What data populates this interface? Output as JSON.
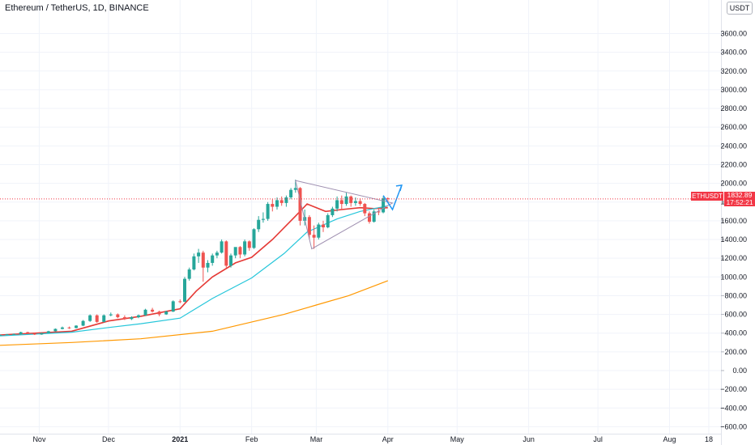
{
  "header": {
    "title": "Ethereum / TetherUS, 1D, BINANCE",
    "currency": "USDT"
  },
  "price_marker": {
    "symbol": "ETHUSDT",
    "price": "1832.89",
    "countdown": "17:52:21",
    "color": "#f23645"
  },
  "colors": {
    "up": "#26a69a",
    "down": "#ef5350",
    "ema_fast": "#e53935",
    "ema_mid": "#26c6da",
    "ema_slow": "#ff9800",
    "triangle": "#9e8fb0",
    "arrow": "#2196f3",
    "grid": "#f0f3fa"
  },
  "chart_data": {
    "type": "candlestick",
    "title": "Ethereum / TetherUS, 1D, BINANCE",
    "y_axis": {
      "ticks": [
        3600,
        3400,
        3200,
        3000,
        2800,
        2600,
        2400,
        2200,
        2000,
        1800,
        1600,
        1400,
        1200,
        1000,
        800,
        600,
        400,
        200,
        0,
        -200,
        -400,
        -600
      ],
      "tick_labels": [
        "3600.00",
        "3400.00",
        "3200.00",
        "3000.00",
        "2800.00",
        "2600.00",
        "2400.00",
        "2200.00",
        "2000.00",
        "1800.00",
        "1600.00",
        "1400.00",
        "1200.00",
        "1000.00",
        "800.00",
        "600.00",
        "400.00",
        "200.00",
        "0.00",
        "−200.00",
        "−400.00",
        "−600.00"
      ],
      "range": [
        -700,
        3800
      ]
    },
    "x_axis": {
      "labels": [
        "Nov",
        "Dec",
        "2021",
        "Feb",
        "Mar",
        "Apr",
        "May",
        "Jun",
        "Jul",
        "Aug",
        "18"
      ],
      "bold_labels": [
        "2021"
      ],
      "start": "2020-10-15",
      "end": "2021-08-18"
    },
    "candles_daily": [
      [
        "2020-10-15",
        380,
        385,
        375,
        382
      ],
      [
        "2020-10-18",
        382,
        390,
        378,
        388
      ],
      [
        "2020-10-21",
        388,
        395,
        380,
        390
      ],
      [
        "2020-10-24",
        390,
        415,
        385,
        410
      ],
      [
        "2020-10-27",
        410,
        415,
        390,
        395
      ],
      [
        "2020-10-30",
        395,
        400,
        380,
        385
      ],
      [
        "2020-11-02",
        385,
        405,
        382,
        400
      ],
      [
        "2020-11-05",
        400,
        425,
        398,
        420
      ],
      [
        "2020-11-08",
        420,
        450,
        415,
        445
      ],
      [
        "2020-11-11",
        445,
        470,
        440,
        460
      ],
      [
        "2020-11-14",
        460,
        470,
        445,
        455
      ],
      [
        "2020-11-17",
        455,
        485,
        450,
        480
      ],
      [
        "2020-11-20",
        480,
        540,
        475,
        530
      ],
      [
        "2020-11-23",
        530,
        600,
        520,
        590
      ],
      [
        "2020-11-26",
        590,
        600,
        510,
        520
      ],
      [
        "2020-11-29",
        520,
        600,
        515,
        590
      ],
      [
        "2020-12-02",
        590,
        620,
        580,
        600
      ],
      [
        "2020-12-05",
        600,
        610,
        560,
        570
      ],
      [
        "2020-12-08",
        570,
        590,
        540,
        550
      ],
      [
        "2020-12-11",
        550,
        580,
        540,
        570
      ],
      [
        "2020-12-14",
        570,
        600,
        560,
        590
      ],
      [
        "2020-12-17",
        590,
        660,
        585,
        650
      ],
      [
        "2020-12-20",
        650,
        670,
        620,
        630
      ],
      [
        "2020-12-23",
        630,
        640,
        580,
        600
      ],
      [
        "2020-12-26",
        600,
        640,
        595,
        630
      ],
      [
        "2020-12-29",
        630,
        750,
        625,
        740
      ],
      [
        "2021-01-01",
        740,
        760,
        720,
        735
      ],
      [
        "2021-01-03",
        735,
        1000,
        730,
        980
      ],
      [
        "2021-01-05",
        980,
        1100,
        960,
        1080
      ],
      [
        "2021-01-07",
        1080,
        1250,
        1070,
        1220
      ],
      [
        "2021-01-09",
        1220,
        1300,
        1150,
        1260
      ],
      [
        "2021-01-11",
        1260,
        1280,
        950,
        1100
      ],
      [
        "2021-01-13",
        1100,
        1180,
        1050,
        1150
      ],
      [
        "2021-01-15",
        1150,
        1250,
        1120,
        1230
      ],
      [
        "2021-01-17",
        1230,
        1280,
        1200,
        1260
      ],
      [
        "2021-01-19",
        1260,
        1400,
        1250,
        1380
      ],
      [
        "2021-01-21",
        1380,
        1390,
        1100,
        1120
      ],
      [
        "2021-01-23",
        1120,
        1250,
        1100,
        1230
      ],
      [
        "2021-01-25",
        1230,
        1300,
        1200,
        1320
      ],
      [
        "2021-01-27",
        1320,
        1330,
        1200,
        1240
      ],
      [
        "2021-01-29",
        1240,
        1400,
        1220,
        1380
      ],
      [
        "2021-01-31",
        1380,
        1390,
        1280,
        1310
      ],
      [
        "2021-02-02",
        1310,
        1520,
        1300,
        1510
      ],
      [
        "2021-02-04",
        1510,
        1650,
        1480,
        1610
      ],
      [
        "2021-02-06",
        1610,
        1690,
        1580,
        1620
      ],
      [
        "2021-02-08",
        1620,
        1800,
        1600,
        1780
      ],
      [
        "2021-02-10",
        1780,
        1830,
        1700,
        1750
      ],
      [
        "2021-02-12",
        1750,
        1850,
        1720,
        1820
      ],
      [
        "2021-02-14",
        1820,
        1860,
        1760,
        1790
      ],
      [
        "2021-02-16",
        1790,
        1870,
        1750,
        1850
      ],
      [
        "2021-02-18",
        1850,
        1950,
        1830,
        1930
      ],
      [
        "2021-02-20",
        1930,
        2040,
        1900,
        1950
      ],
      [
        "2021-02-22",
        1950,
        1960,
        1550,
        1600
      ],
      [
        "2021-02-24",
        1600,
        1720,
        1550,
        1640
      ],
      [
        "2021-02-26",
        1640,
        1660,
        1400,
        1450
      ],
      [
        "2021-02-28",
        1450,
        1550,
        1300,
        1420
      ],
      [
        "2021-03-02",
        1420,
        1580,
        1400,
        1560
      ],
      [
        "2021-03-04",
        1560,
        1600,
        1480,
        1530
      ],
      [
        "2021-03-06",
        1530,
        1680,
        1520,
        1660
      ],
      [
        "2021-03-08",
        1660,
        1750,
        1640,
        1730
      ],
      [
        "2021-03-10",
        1730,
        1860,
        1700,
        1820
      ],
      [
        "2021-03-12",
        1820,
        1870,
        1720,
        1780
      ],
      [
        "2021-03-14",
        1780,
        1900,
        1760,
        1860
      ],
      [
        "2021-03-16",
        1860,
        1870,
        1750,
        1790
      ],
      [
        "2021-03-18",
        1790,
        1850,
        1760,
        1810
      ],
      [
        "2021-03-20",
        1810,
        1840,
        1760,
        1780
      ],
      [
        "2021-03-22",
        1780,
        1790,
        1650,
        1680
      ],
      [
        "2021-03-24",
        1680,
        1700,
        1570,
        1590
      ],
      [
        "2021-03-26",
        1590,
        1720,
        1580,
        1700
      ],
      [
        "2021-03-28",
        1700,
        1740,
        1660,
        1690
      ],
      [
        "2021-03-30",
        1690,
        1860,
        1680,
        1840
      ],
      [
        "2021-04-01",
        1840,
        1850,
        1790,
        1833
      ]
    ],
    "series": [
      {
        "name": "",
        "type": "line",
        "color": "#e53935",
        "x": [
          "2020-10-15",
          "2020-11-15",
          "2020-12-01",
          "2020-12-15",
          "2021-01-01",
          "2021-01-08",
          "2021-01-15",
          "2021-01-25",
          "2021-02-01",
          "2021-02-10",
          "2021-02-20",
          "2021-02-25",
          "2021-03-05",
          "2021-03-12",
          "2021-03-20",
          "2021-03-26",
          "2021-04-01"
        ],
        "y": [
          380,
          420,
          530,
          580,
          660,
          850,
          1000,
          1150,
          1210,
          1400,
          1650,
          1780,
          1700,
          1720,
          1740,
          1730,
          1740
        ]
      },
      {
        "name": "",
        "type": "line",
        "color": "#26c6da",
        "x": [
          "2020-10-15",
          "2020-11-15",
          "2020-12-01",
          "2020-12-15",
          "2021-01-01",
          "2021-01-15",
          "2021-02-01",
          "2021-02-15",
          "2021-02-25",
          "2021-03-10",
          "2021-03-20",
          "2021-04-01"
        ],
        "y": [
          370,
          410,
          460,
          500,
          560,
          770,
          990,
          1250,
          1480,
          1620,
          1700,
          1760
        ]
      },
      {
        "name": "",
        "type": "line",
        "color": "#ff9800",
        "x": [
          "2020-10-15",
          "2020-11-15",
          "2020-12-15",
          "2021-01-15",
          "2021-02-15",
          "2021-03-01",
          "2021-03-15",
          "2021-04-01"
        ],
        "y": [
          270,
          300,
          340,
          420,
          600,
          700,
          800,
          960
        ]
      }
    ],
    "annotations": {
      "triangle": [
        [
          "2021-02-20",
          2030
        ],
        [
          "2021-04-03",
          1790
        ],
        [
          "2021-02-27",
          1300
        ]
      ],
      "projection_arrow": [
        [
          "2021-03-30",
          1870
        ],
        [
          "2021-04-03",
          1720
        ],
        [
          "2021-04-07",
          1980
        ]
      ],
      "last_price_line": 1832.89
    },
    "grid": true
  }
}
